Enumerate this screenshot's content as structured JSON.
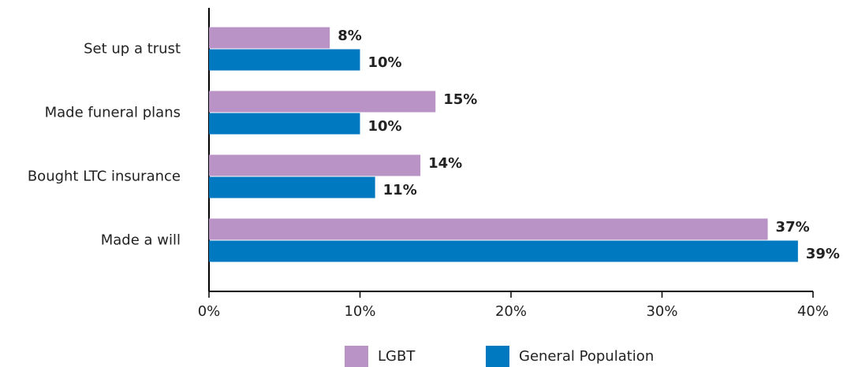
{
  "chart_data": {
    "type": "hbar",
    "categories": [
      "Set up a trust",
      "Made funeral plans",
      "Bought LTC insurance",
      "Made a will"
    ],
    "series": [
      {
        "name": "LGBT",
        "color": "#b993c6",
        "values": [
          8,
          15,
          14,
          37
        ],
        "value_labels": [
          "8%",
          "15%",
          "14%",
          "37%"
        ]
      },
      {
        "name": "General Population",
        "color": "#0079c1",
        "values": [
          10,
          10,
          11,
          39
        ],
        "value_labels": [
          "10%",
          "10%",
          "11%",
          "39%"
        ]
      }
    ],
    "xlim": [
      0,
      40
    ],
    "xticks": [
      {
        "value": 0,
        "label": "0%"
      },
      {
        "value": 10,
        "label": "10%"
      },
      {
        "value": 20,
        "label": "20%"
      },
      {
        "value": 30,
        "label": "30%"
      },
      {
        "value": 40,
        "label": "40%"
      }
    ],
    "grid": false,
    "legend": "bottom"
  }
}
